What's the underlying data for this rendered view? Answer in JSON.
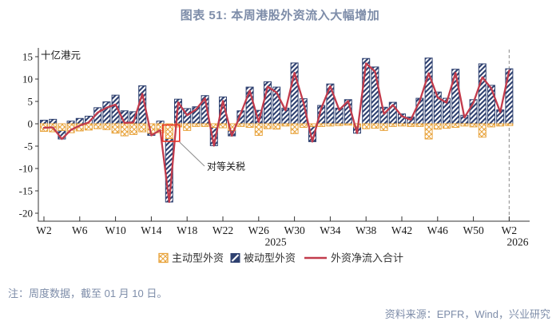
{
  "title": "图表 51: 本周港股外资流入大幅增加",
  "note": "注：周度数据，截至 01 月 10 日。",
  "source": "资料来源：EPFR，Wind，兴业研究",
  "colors": {
    "active_orange": "#E8A33C",
    "passive_navy": "#2F4170",
    "net_red": "#C23B4C",
    "title_slate": "#7E8DA9",
    "axis_text": "#1A1A1A",
    "axis_line": "#333333",
    "dashed_line": "#9E9E9E",
    "highlight_red": "#E63226",
    "leader_gray": "#8A8A8A",
    "legend_text": "#333333"
  },
  "legend": [
    {
      "label": "主动型外资",
      "swatch": "orange-crosshatch-square"
    },
    {
      "label": "被动型外资",
      "swatch": "navy-diagonal-square"
    },
    {
      "label": "外资净流入合计",
      "swatch": "red-line"
    }
  ],
  "chart_data": {
    "type": "bar",
    "subtype": "stacked bars with line overlay",
    "unit_label": "十亿港元",
    "ylim": [
      -20,
      15
    ],
    "ytick_step": 5,
    "grid": false,
    "legend_position": "bottom-center",
    "x": [
      "W2",
      "W3",
      "W4",
      "W5",
      "W6",
      "W7",
      "W8",
      "W9",
      "W10",
      "W11",
      "W12",
      "W13",
      "W14",
      "W15",
      "W16",
      "W17",
      "W18",
      "W19",
      "W20",
      "W21",
      "W22",
      "W23",
      "W24",
      "W25",
      "W26",
      "W27",
      "W28",
      "W29",
      "W30",
      "W31",
      "W32",
      "W33",
      "W34",
      "W35",
      "W36",
      "W37",
      "W38",
      "W39",
      "W40",
      "W41",
      "W42",
      "W43",
      "W44",
      "W45",
      "W46",
      "W47",
      "W48",
      "W49",
      "W50",
      "W51",
      "W52",
      "W1",
      "W2"
    ],
    "x_tick_indices": [
      0,
      4,
      8,
      12,
      16,
      20,
      24,
      28,
      32,
      36,
      40,
      44,
      48,
      52
    ],
    "x_tick_labels": [
      "W2",
      "W6",
      "W10",
      "W14",
      "W18",
      "W22",
      "W26",
      "W30",
      "W34",
      "W38",
      "W42",
      "W46",
      "W50",
      "W2"
    ],
    "years": [
      {
        "label": "2025",
        "x_index": 25.9
      },
      {
        "label": "2026",
        "x_index": 52.95
      }
    ],
    "series": [
      {
        "name": "主动型外资",
        "type": "bar",
        "color": "#E8A33C",
        "pattern": "crosshatch",
        "values": [
          -1.7,
          -1.8,
          -1.5,
          -2.0,
          -1.6,
          -1.4,
          -1.1,
          -1.3,
          -2.1,
          -2.7,
          -2.4,
          -1.8,
          -2.1,
          -2.0,
          -3.3,
          -0.7,
          -1.5,
          -0.6,
          -0.6,
          -0.8,
          -0.9,
          -1.5,
          -0.6,
          -0.8,
          -2.6,
          -1.1,
          -1.2,
          -0.5,
          -2.2,
          -0.8,
          -0.6,
          -0.6,
          -0.5,
          -0.4,
          -0.3,
          -0.7,
          -1.1,
          -1.0,
          -1.5,
          -0.6,
          -0.5,
          -0.6,
          -0.6,
          -3.4,
          -1.2,
          -1.0,
          -0.8,
          -0.5,
          -0.7,
          -3.0,
          -0.7,
          -0.5,
          -0.4
        ]
      },
      {
        "name": "被动型外资",
        "type": "bar",
        "color": "#2F4170",
        "pattern": "diagonal",
        "values": [
          0.8,
          1.0,
          -1.9,
          0.6,
          1.2,
          1.7,
          3.6,
          4.9,
          6.4,
          2.9,
          2.7,
          8.5,
          -0.5,
          0.6,
          -14.2,
          5.5,
          3.4,
          3.8,
          6.3,
          -4.1,
          6.0,
          -1.2,
          2.9,
          8.2,
          3.0,
          9.4,
          8.2,
          3.5,
          13.6,
          5.6,
          -3.4,
          4.1,
          8.9,
          3.5,
          5.4,
          -1.4,
          14.6,
          12.7,
          3.7,
          4.8,
          2.2,
          1.5,
          5.7,
          14.7,
          7.1,
          5.7,
          12.2,
          1.9,
          5.4,
          13.4,
          8.6,
          3.1,
          12.3
        ]
      },
      {
        "name": "外资净流入合计",
        "type": "line",
        "color": "#C23B4C",
        "values": [
          -0.9,
          -0.8,
          -3.4,
          -1.4,
          -0.4,
          0.3,
          2.5,
          3.6,
          4.3,
          0.2,
          0.3,
          6.7,
          -2.6,
          -1.4,
          -17.5,
          4.8,
          1.9,
          3.2,
          5.7,
          -4.9,
          5.1,
          -2.7,
          2.3,
          7.4,
          0.4,
          8.3,
          7.0,
          3.0,
          11.4,
          4.8,
          -4.0,
          3.5,
          8.4,
          3.1,
          5.1,
          -2.1,
          13.5,
          11.7,
          2.2,
          4.2,
          1.7,
          0.9,
          5.1,
          11.3,
          5.9,
          4.7,
          11.4,
          1.4,
          4.7,
          10.4,
          7.9,
          2.6,
          11.9
        ]
      }
    ],
    "annotation": {
      "text": "对等关税",
      "highlight_week_index": 14,
      "highlight_week_label": "W16"
    },
    "dashed_line_index": 52
  }
}
